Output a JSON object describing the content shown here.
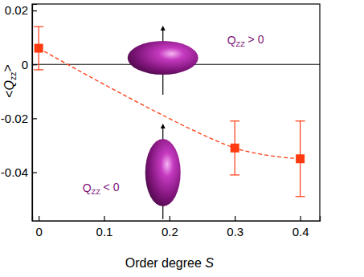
{
  "chart_data": {
    "type": "scatter",
    "x_label": "Order degree S",
    "y_label": "<Qzz>",
    "x": [
      0,
      0.3,
      0.4
    ],
    "series": [
      {
        "name": "<Qzz>",
        "color": "#ff3a10",
        "marker": "square",
        "line_style": "dashed",
        "values": [
          0.006,
          -0.031,
          -0.035
        ],
        "errors": [
          0.008,
          0.01,
          0.014
        ]
      }
    ],
    "xlim": [
      -0.01,
      0.43
    ],
    "ylim": [
      -0.058,
      0.0224
    ],
    "xticks": [
      0,
      0.1,
      0.2,
      0.3,
      0.4
    ],
    "yticks": [
      -0.04,
      -0.02,
      0,
      0.02
    ],
    "hline": 0,
    "annotations": [
      {
        "text": "QZZ > 0"
      },
      {
        "text": "QZZ < 0"
      }
    ]
  }
}
